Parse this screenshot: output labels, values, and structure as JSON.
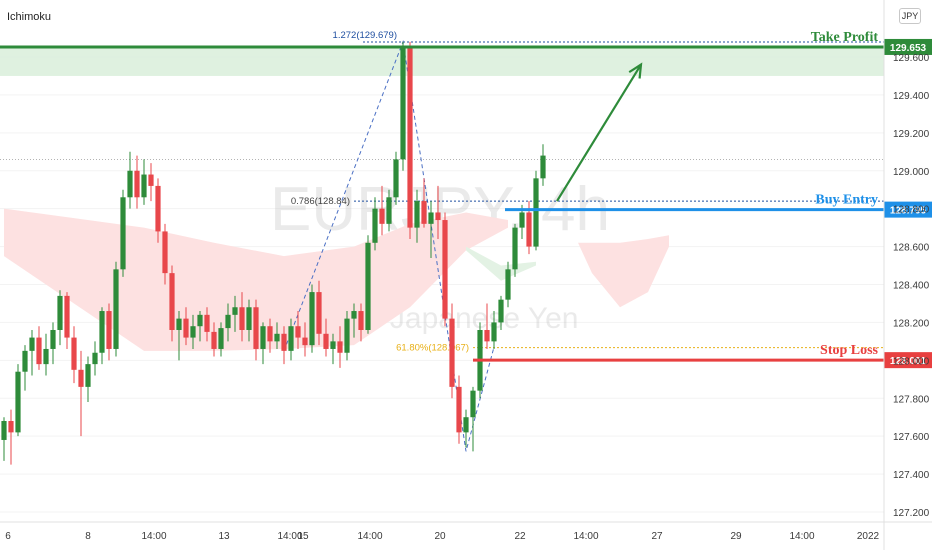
{
  "indicator_label": "Ichimoku",
  "currency_badge": "JPY",
  "colors": {
    "up": "#2e8b3a",
    "down": "#e8474b",
    "take_profit": "#2e8b3a",
    "buy_entry": "#1e90e8",
    "stop_loss": "#e84040",
    "cloud_bear": "#fde1e1",
    "cloud_bull": "#e3f2e4",
    "fib_upper": "#1f4fa0",
    "fib_lower": "#e8b017"
  },
  "watermark": {
    "symbol": "EURJPY, 4h",
    "name": "Euro / Japanese Yen"
  },
  "chart_data": {
    "type": "candlestick",
    "title": "",
    "xlabel": "",
    "ylabel": "",
    "ylim": [
      127.2,
      129.8
    ],
    "yticks": [
      "127.200",
      "127.400",
      "127.600",
      "127.800",
      "128.000",
      "128.200",
      "128.400",
      "128.600",
      "128.800",
      "129.000",
      "129.200",
      "129.400",
      "129.600"
    ],
    "x_tick_labels": [
      "6",
      "8",
      "14:00",
      "13",
      "14:00",
      "15",
      "14:00",
      "20",
      "22",
      "14:00",
      "27",
      "29",
      "14:00",
      "2022"
    ],
    "candles": [
      {
        "o": 127.58,
        "h": 127.7,
        "l": 127.47,
        "c": 127.68
      },
      {
        "o": 127.68,
        "h": 127.74,
        "l": 127.45,
        "c": 127.62
      },
      {
        "o": 127.62,
        "h": 127.98,
        "l": 127.6,
        "c": 127.94
      },
      {
        "o": 127.94,
        "h": 128.08,
        "l": 127.84,
        "c": 128.05
      },
      {
        "o": 128.05,
        "h": 128.16,
        "l": 127.92,
        "c": 128.12
      },
      {
        "o": 128.12,
        "h": 128.18,
        "l": 127.95,
        "c": 127.98
      },
      {
        "o": 127.98,
        "h": 128.14,
        "l": 127.92,
        "c": 128.06
      },
      {
        "o": 128.06,
        "h": 128.2,
        "l": 127.98,
        "c": 128.16
      },
      {
        "o": 128.16,
        "h": 128.37,
        "l": 128.08,
        "c": 128.34
      },
      {
        "o": 128.34,
        "h": 128.36,
        "l": 128.06,
        "c": 128.12
      },
      {
        "o": 128.12,
        "h": 128.18,
        "l": 127.88,
        "c": 127.95
      },
      {
        "o": 127.95,
        "h": 128.05,
        "l": 127.6,
        "c": 127.86
      },
      {
        "o": 127.86,
        "h": 128.02,
        "l": 127.78,
        "c": 127.98
      },
      {
        "o": 127.98,
        "h": 128.1,
        "l": 127.92,
        "c": 128.04
      },
      {
        "o": 128.04,
        "h": 128.28,
        "l": 127.98,
        "c": 128.26
      },
      {
        "o": 128.26,
        "h": 128.3,
        "l": 128.0,
        "c": 128.06
      },
      {
        "o": 128.06,
        "h": 128.52,
        "l": 128.02,
        "c": 128.48
      },
      {
        "o": 128.48,
        "h": 128.9,
        "l": 128.44,
        "c": 128.86
      },
      {
        "o": 128.86,
        "h": 129.1,
        "l": 128.8,
        "c": 129.0
      },
      {
        "o": 129.0,
        "h": 129.08,
        "l": 128.8,
        "c": 128.86
      },
      {
        "o": 128.86,
        "h": 129.06,
        "l": 128.82,
        "c": 128.98
      },
      {
        "o": 128.98,
        "h": 129.04,
        "l": 128.84,
        "c": 128.92
      },
      {
        "o": 128.92,
        "h": 128.96,
        "l": 128.62,
        "c": 128.68
      },
      {
        "o": 128.68,
        "h": 128.72,
        "l": 128.4,
        "c": 128.46
      },
      {
        "o": 128.46,
        "h": 128.5,
        "l": 128.1,
        "c": 128.16
      },
      {
        "o": 128.16,
        "h": 128.26,
        "l": 128.0,
        "c": 128.22
      },
      {
        "o": 128.22,
        "h": 128.28,
        "l": 128.08,
        "c": 128.12
      },
      {
        "o": 128.12,
        "h": 128.24,
        "l": 128.06,
        "c": 128.18
      },
      {
        "o": 128.18,
        "h": 128.26,
        "l": 128.1,
        "c": 128.24
      },
      {
        "o": 128.24,
        "h": 128.28,
        "l": 128.1,
        "c": 128.15
      },
      {
        "o": 128.15,
        "h": 128.2,
        "l": 128.02,
        "c": 128.06
      },
      {
        "o": 128.06,
        "h": 128.2,
        "l": 128.02,
        "c": 128.17
      },
      {
        "o": 128.17,
        "h": 128.3,
        "l": 128.1,
        "c": 128.24
      },
      {
        "o": 128.24,
        "h": 128.34,
        "l": 128.15,
        "c": 128.28
      },
      {
        "o": 128.28,
        "h": 128.36,
        "l": 128.1,
        "c": 128.16
      },
      {
        "o": 128.16,
        "h": 128.32,
        "l": 128.1,
        "c": 128.28
      },
      {
        "o": 128.28,
        "h": 128.32,
        "l": 128.0,
        "c": 128.06
      },
      {
        "o": 128.06,
        "h": 128.2,
        "l": 127.98,
        "c": 128.18
      },
      {
        "o": 128.18,
        "h": 128.22,
        "l": 128.04,
        "c": 128.1
      },
      {
        "o": 128.1,
        "h": 128.2,
        "l": 128.06,
        "c": 128.14
      },
      {
        "o": 128.14,
        "h": 128.18,
        "l": 127.98,
        "c": 128.05
      },
      {
        "o": 128.05,
        "h": 128.22,
        "l": 128.0,
        "c": 128.18
      },
      {
        "o": 128.18,
        "h": 128.26,
        "l": 128.06,
        "c": 128.12
      },
      {
        "o": 128.12,
        "h": 128.2,
        "l": 128.02,
        "c": 128.08
      },
      {
        "o": 128.08,
        "h": 128.4,
        "l": 128.04,
        "c": 128.36
      },
      {
        "o": 128.36,
        "h": 128.42,
        "l": 128.08,
        "c": 128.14
      },
      {
        "o": 128.14,
        "h": 128.22,
        "l": 128.02,
        "c": 128.06
      },
      {
        "o": 128.06,
        "h": 128.14,
        "l": 127.98,
        "c": 128.1
      },
      {
        "o": 128.1,
        "h": 128.18,
        "l": 127.96,
        "c": 128.04
      },
      {
        "o": 128.04,
        "h": 128.26,
        "l": 128.0,
        "c": 128.22
      },
      {
        "o": 128.22,
        "h": 128.3,
        "l": 128.12,
        "c": 128.26
      },
      {
        "o": 128.26,
        "h": 128.3,
        "l": 128.1,
        "c": 128.16
      },
      {
        "o": 128.16,
        "h": 128.66,
        "l": 128.14,
        "c": 128.62
      },
      {
        "o": 128.62,
        "h": 128.86,
        "l": 128.58,
        "c": 128.8
      },
      {
        "o": 128.8,
        "h": 128.92,
        "l": 128.66,
        "c": 128.72
      },
      {
        "o": 128.72,
        "h": 128.9,
        "l": 128.68,
        "c": 128.86
      },
      {
        "o": 128.86,
        "h": 129.1,
        "l": 128.82,
        "c": 129.06
      },
      {
        "o": 129.06,
        "h": 129.68,
        "l": 129.0,
        "c": 129.66
      },
      {
        "o": 129.66,
        "h": 129.68,
        "l": 128.64,
        "c": 128.7
      },
      {
        "o": 128.7,
        "h": 128.9,
        "l": 128.62,
        "c": 128.84
      },
      {
        "o": 128.84,
        "h": 128.96,
        "l": 128.7,
        "c": 128.72
      },
      {
        "o": 128.72,
        "h": 128.84,
        "l": 128.54,
        "c": 128.78
      },
      {
        "o": 128.78,
        "h": 128.92,
        "l": 128.64,
        "c": 128.74
      },
      {
        "o": 128.74,
        "h": 128.78,
        "l": 128.18,
        "c": 128.22
      },
      {
        "o": 128.22,
        "h": 128.3,
        "l": 127.8,
        "c": 127.86
      },
      {
        "o": 127.86,
        "h": 127.92,
        "l": 127.56,
        "c": 127.62
      },
      {
        "o": 127.62,
        "h": 127.74,
        "l": 127.54,
        "c": 127.7
      },
      {
        "o": 127.7,
        "h": 127.86,
        "l": 127.52,
        "c": 127.84
      },
      {
        "o": 127.84,
        "h": 128.2,
        "l": 127.8,
        "c": 128.16
      },
      {
        "o": 128.16,
        "h": 128.3,
        "l": 128.06,
        "c": 128.1
      },
      {
        "o": 128.1,
        "h": 128.26,
        "l": 128.06,
        "c": 128.2
      },
      {
        "o": 128.2,
        "h": 128.34,
        "l": 128.16,
        "c": 128.32
      },
      {
        "o": 128.32,
        "h": 128.52,
        "l": 128.28,
        "c": 128.48
      },
      {
        "o": 128.48,
        "h": 128.72,
        "l": 128.44,
        "c": 128.7
      },
      {
        "o": 128.7,
        "h": 128.82,
        "l": 128.64,
        "c": 128.78
      },
      {
        "o": 128.78,
        "h": 128.84,
        "l": 128.56,
        "c": 128.6
      },
      {
        "o": 128.6,
        "h": 129.0,
        "l": 128.58,
        "c": 128.96
      },
      {
        "o": 128.96,
        "h": 129.14,
        "l": 128.92,
        "c": 129.08
      }
    ],
    "cloud_bear": [
      {
        "x": 0,
        "top": 128.8,
        "bottom": 128.55
      },
      {
        "x": 10,
        "top": 128.75,
        "bottom": 128.3
      },
      {
        "x": 20,
        "top": 128.7,
        "bottom": 128.05
      },
      {
        "x": 30,
        "top": 128.62,
        "bottom": 128.05
      },
      {
        "x": 40,
        "top": 128.55,
        "bottom": 128.06
      },
      {
        "x": 50,
        "top": 128.6,
        "bottom": 128.08
      },
      {
        "x": 58,
        "top": 128.72,
        "bottom": 128.28
      },
      {
        "x": 66,
        "top": 128.78,
        "bottom": 128.58
      },
      {
        "x": 72,
        "top": 128.74,
        "bottom": 128.7
      }
    ],
    "cloud_bull": [
      {
        "x": 66,
        "top": 128.6,
        "bottom": 128.58
      },
      {
        "x": 71,
        "top": 128.5,
        "bottom": 128.42
      },
      {
        "x": 76,
        "top": 128.52,
        "bottom": 128.5
      }
    ],
    "cloud_bear_right": [
      {
        "x": 82,
        "top": 128.62,
        "bottom": 128.62
      },
      {
        "x": 84,
        "top": 128.62,
        "bottom": 128.46
      },
      {
        "x": 88,
        "top": 128.62,
        "bottom": 128.28
      },
      {
        "x": 92,
        "top": 128.64,
        "bottom": 128.36
      },
      {
        "x": 95,
        "top": 128.66,
        "bottom": 128.6
      }
    ],
    "current_price_line": 129.06,
    "levels": [
      {
        "key": "take_profit",
        "name": "Take Profit",
        "price": 129.653,
        "label": "129.653"
      },
      {
        "key": "buy_entry",
        "name": "Buy Entry",
        "price": 128.795,
        "label": "128.795"
      },
      {
        "key": "stop_loss",
        "name": "Stop Loss",
        "price": 128.001,
        "label": "128.001"
      }
    ],
    "fib_annotations": [
      {
        "text": "1.272(129.679)",
        "price": 129.679
      },
      {
        "text": "0.786(128.84)",
        "price": 128.84
      },
      {
        "text": "61.80%(128.067)",
        "price": 128.067
      }
    ],
    "harmonic_points": [
      {
        "x": 40,
        "y": 128.05
      },
      {
        "x": 57,
        "y": 129.68
      },
      {
        "x": 66,
        "y": 127.52
      },
      {
        "x": 70,
        "y": 128.07
      }
    ],
    "projection_arrow": {
      "from": {
        "x": 79,
        "y": 128.84
      },
      "to": {
        "x": 91,
        "y": 129.56
      }
    }
  }
}
